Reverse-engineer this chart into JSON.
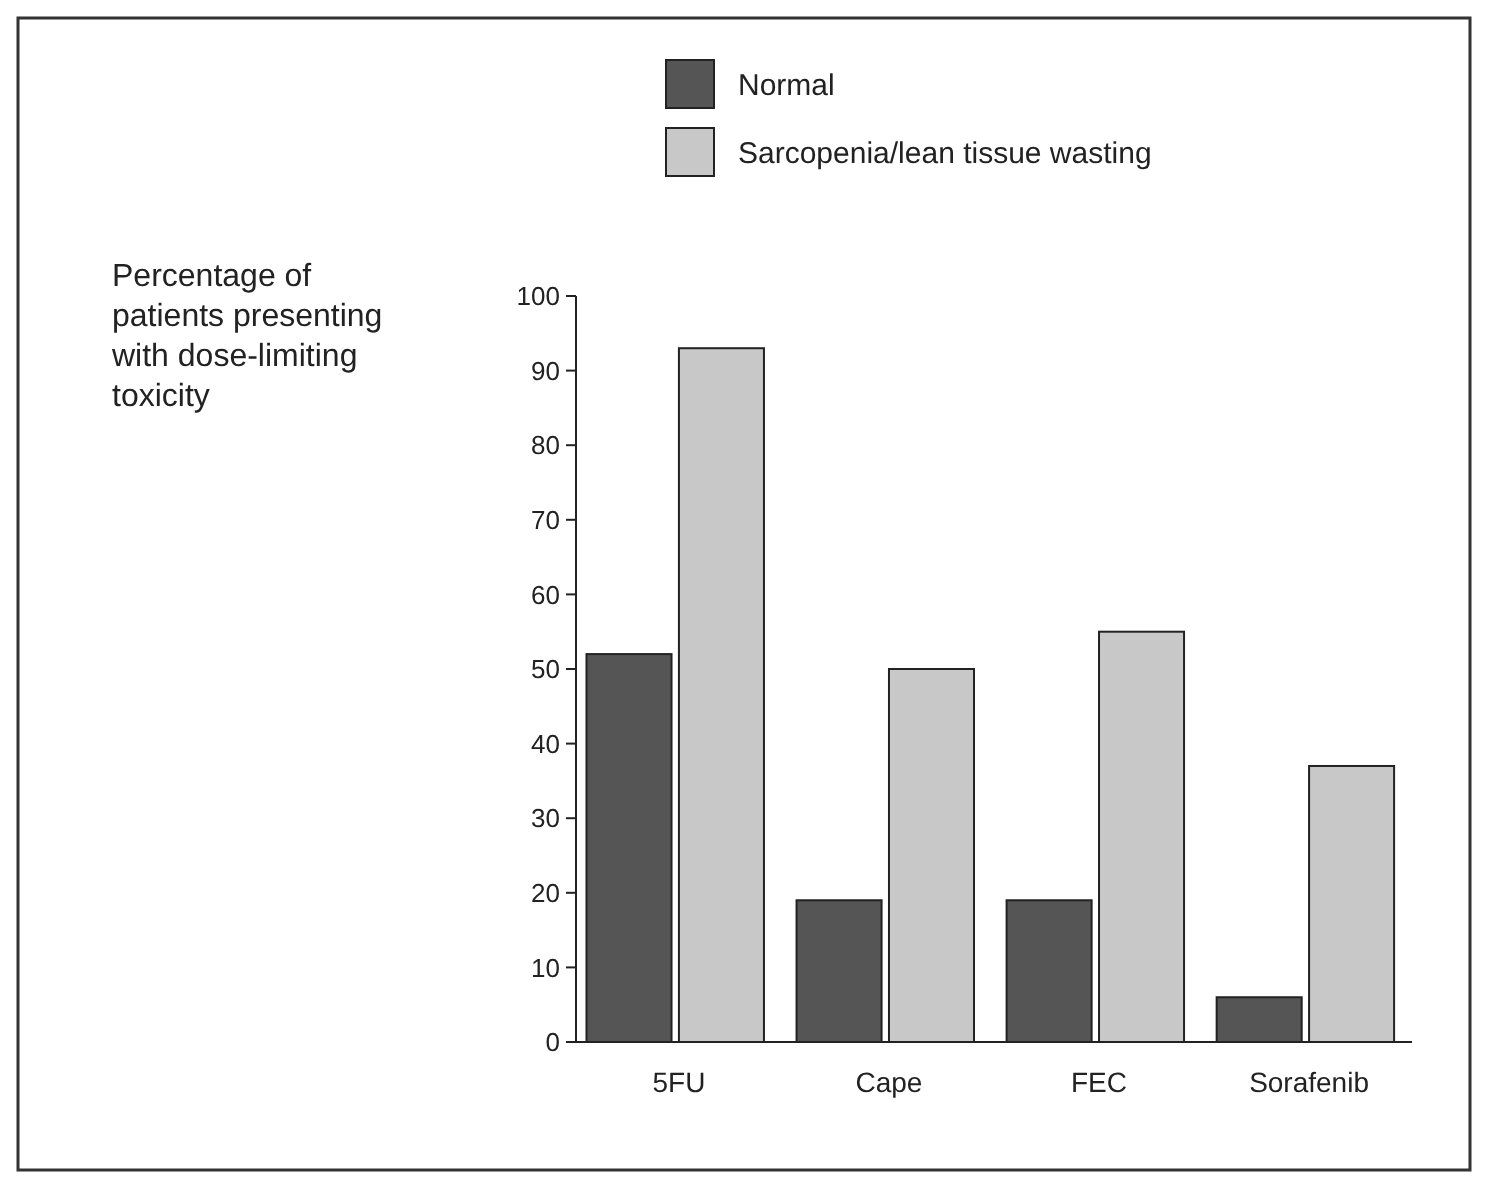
{
  "chart_data": {
    "type": "bar",
    "ylabel": "Percentage of patients presenting with dose-limiting toxicity",
    "categories": [
      "5FU",
      "Cape",
      "FEC",
      "Sorafenib"
    ],
    "series": [
      {
        "name": "Normal",
        "color": "#555555",
        "values": [
          52,
          19,
          19,
          6
        ]
      },
      {
        "name": "Sarcopenia/lean tissue wasting",
        "color": "#c8c8c8",
        "values": [
          93,
          50,
          55,
          37
        ]
      }
    ],
    "ylim": [
      0,
      100
    ],
    "yticks": [
      0,
      10,
      20,
      30,
      40,
      50,
      60,
      70,
      80,
      90,
      100
    ],
    "grid": false,
    "legend": "top"
  }
}
